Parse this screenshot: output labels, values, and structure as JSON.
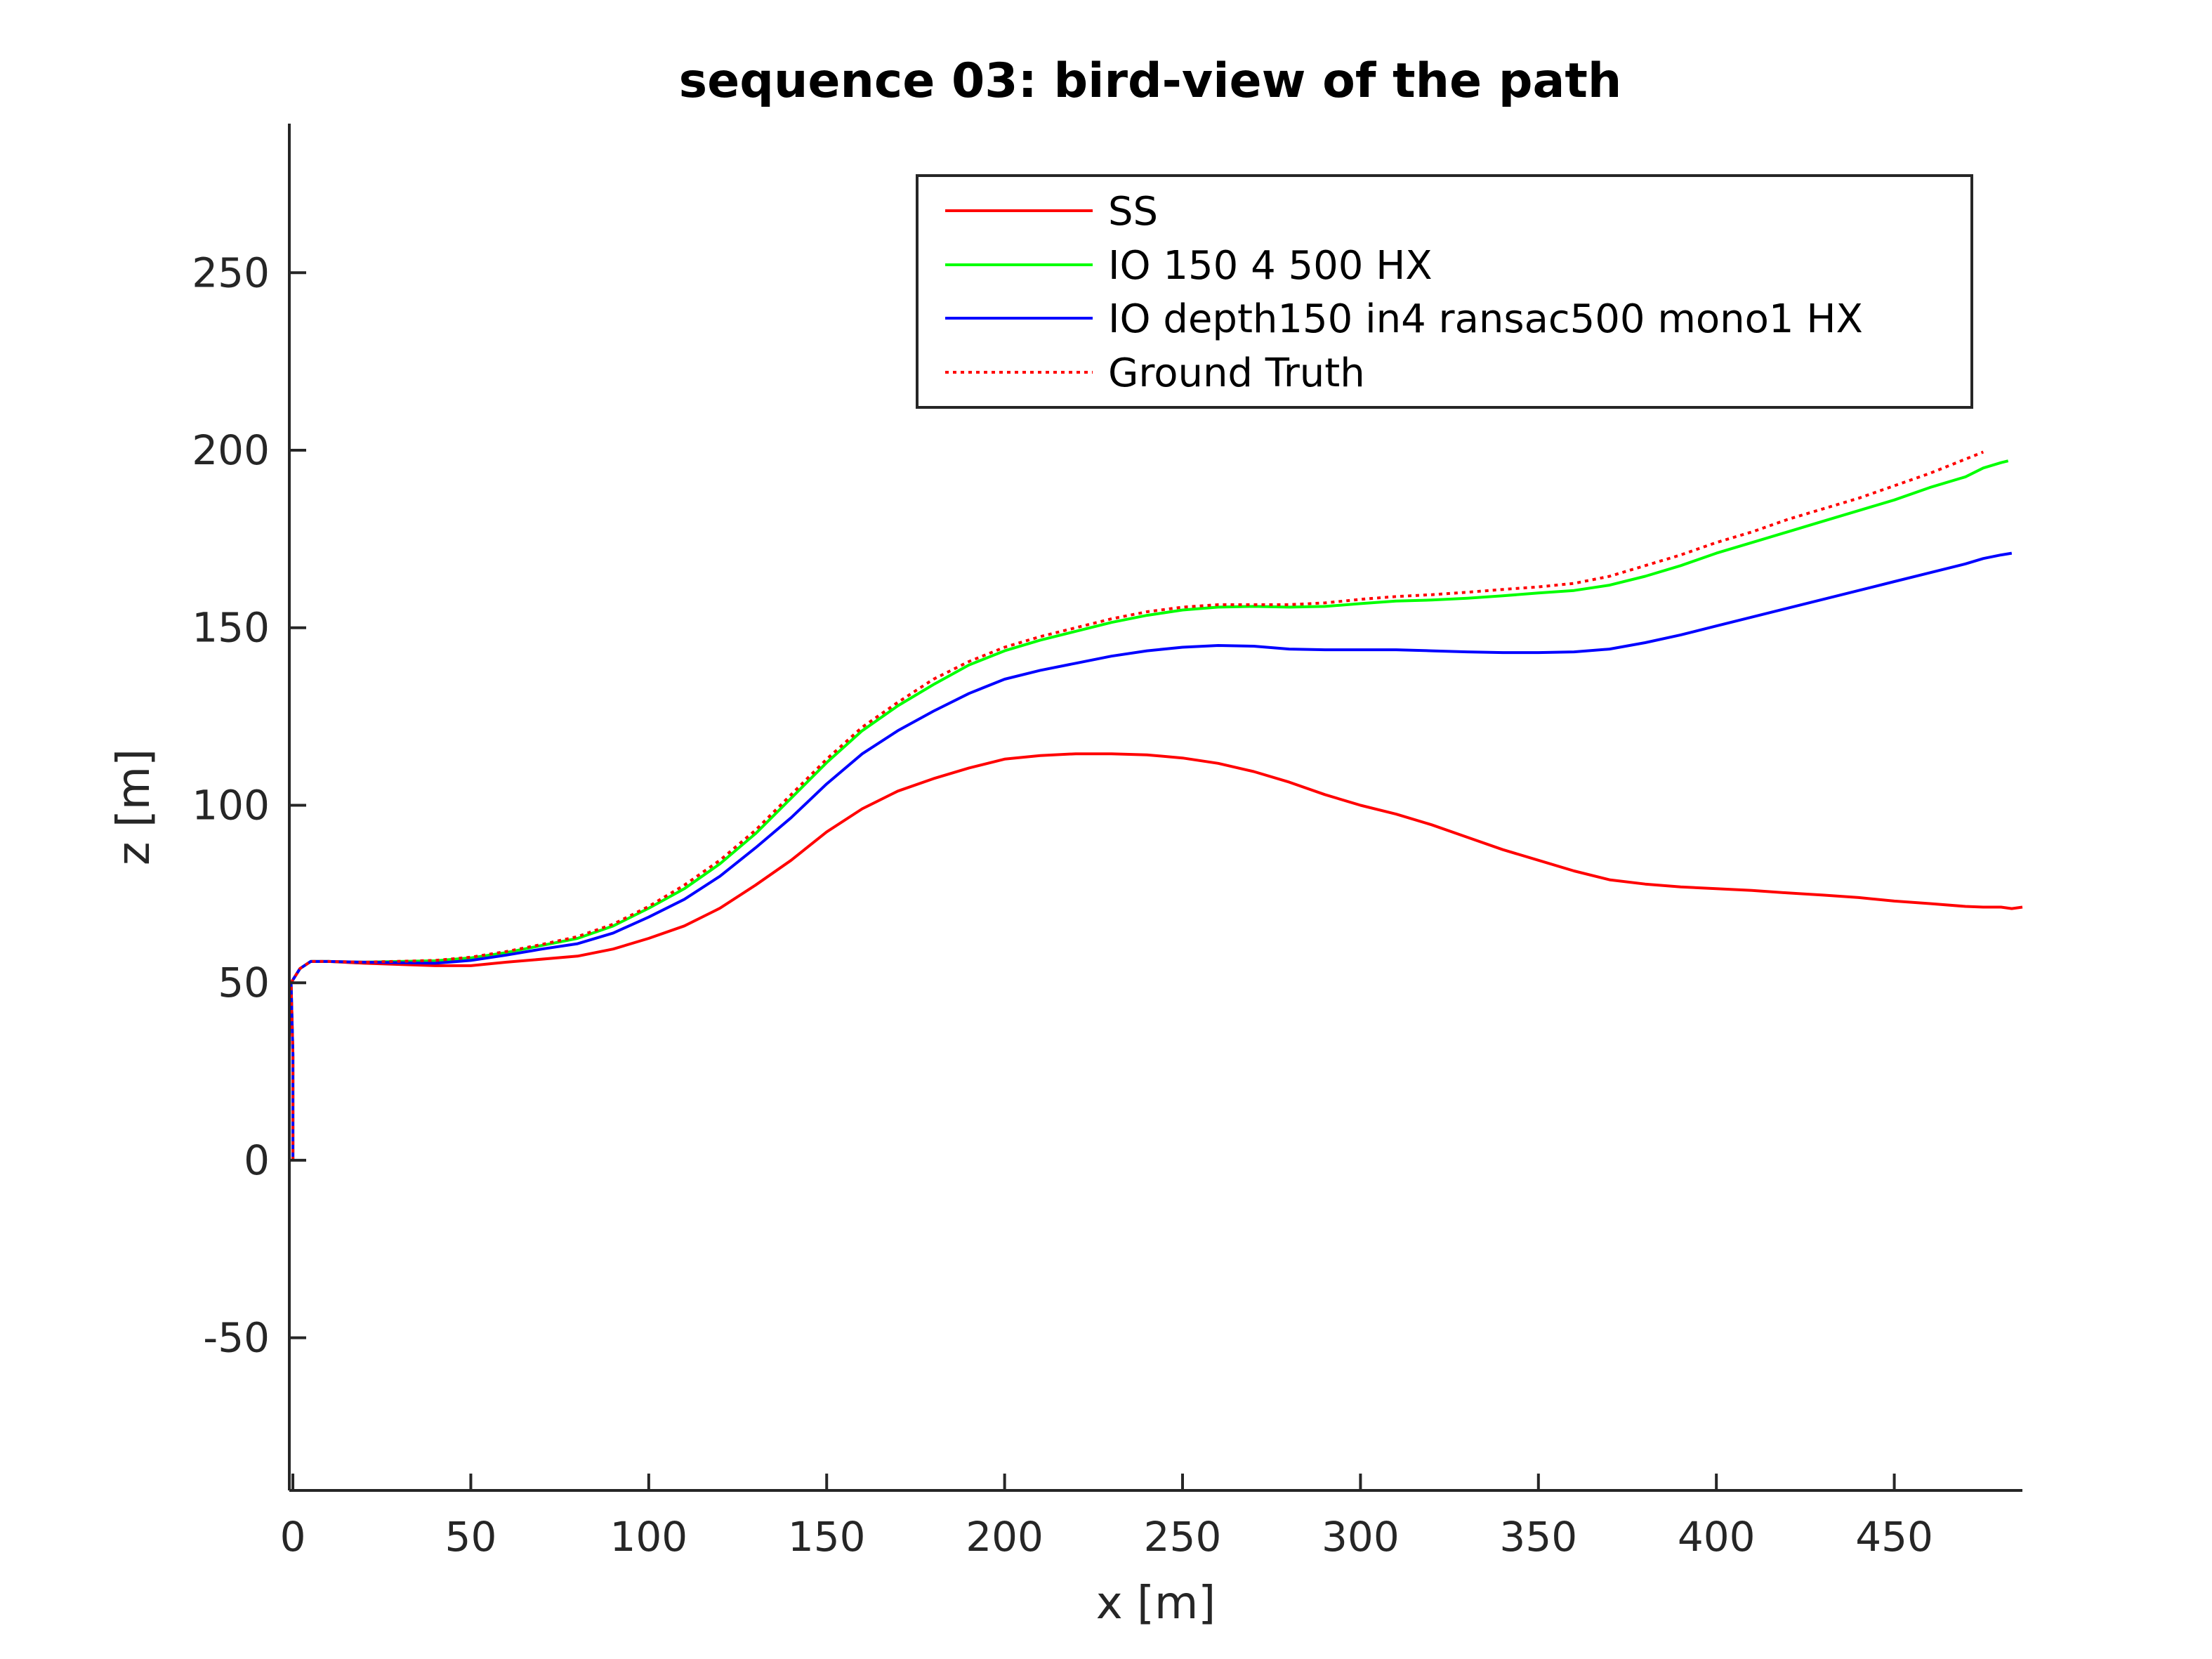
{
  "chart_data": {
    "type": "line",
    "title": "sequence 03: bird-view of the path",
    "xlabel": "x [m]",
    "ylabel": "z [m]",
    "xlim": [
      -1,
      486
    ],
    "ylim": [
      -93,
      292
    ],
    "xticks": [
      0,
      50,
      100,
      150,
      200,
      250,
      300,
      350,
      400,
      450
    ],
    "yticks": [
      -50,
      0,
      50,
      100,
      150,
      200,
      250
    ],
    "grid": false,
    "legend_position": "top-right",
    "series": [
      {
        "name": "SS",
        "color": "#ff0000",
        "dash": "solid",
        "points": [
          [
            0,
            0
          ],
          [
            0,
            30
          ],
          [
            -0.5,
            50
          ],
          [
            2,
            54
          ],
          [
            5,
            56
          ],
          [
            10,
            56
          ],
          [
            20,
            55.5
          ],
          [
            40,
            54.8
          ],
          [
            50,
            54.8
          ],
          [
            60,
            55.8
          ],
          [
            80,
            57.5
          ],
          [
            90,
            59.5
          ],
          [
            100,
            62.5
          ],
          [
            110,
            66
          ],
          [
            120,
            71
          ],
          [
            130,
            77.5
          ],
          [
            140,
            84.5
          ],
          [
            150,
            92.5
          ],
          [
            160,
            99
          ],
          [
            170,
            104
          ],
          [
            180,
            107.5
          ],
          [
            190,
            110.5
          ],
          [
            200,
            113
          ],
          [
            210,
            114
          ],
          [
            220,
            114.5
          ],
          [
            230,
            114.5
          ],
          [
            240,
            114.2
          ],
          [
            250,
            113.3
          ],
          [
            260,
            111.8
          ],
          [
            270,
            109.5
          ],
          [
            280,
            106.5
          ],
          [
            290,
            103
          ],
          [
            300,
            100
          ],
          [
            310,
            97.5
          ],
          [
            320,
            94.5
          ],
          [
            330,
            91
          ],
          [
            340,
            87.5
          ],
          [
            350,
            84.5
          ],
          [
            360,
            81.5
          ],
          [
            370,
            79
          ],
          [
            380,
            77.8
          ],
          [
            390,
            77
          ],
          [
            400,
            76.5
          ],
          [
            410,
            76
          ],
          [
            420,
            75.3
          ],
          [
            430,
            74.7
          ],
          [
            440,
            74
          ],
          [
            450,
            73
          ],
          [
            460,
            72.3
          ],
          [
            470,
            71.5
          ],
          [
            475,
            71.3
          ],
          [
            480,
            71.3
          ],
          [
            483,
            70.9
          ],
          [
            486,
            71.3
          ]
        ]
      },
      {
        "name": "IO 150 4 500 HX",
        "color": "#00ff00",
        "dash": "solid",
        "points": [
          [
            0,
            0
          ],
          [
            0,
            30
          ],
          [
            -0.5,
            50
          ],
          [
            2,
            54
          ],
          [
            5,
            56
          ],
          [
            10,
            56
          ],
          [
            20,
            55.8
          ],
          [
            40,
            56.2
          ],
          [
            50,
            57
          ],
          [
            60,
            58.5
          ],
          [
            70,
            60.5
          ],
          [
            80,
            62.5
          ],
          [
            90,
            66
          ],
          [
            100,
            71
          ],
          [
            110,
            76.5
          ],
          [
            120,
            83.5
          ],
          [
            130,
            92
          ],
          [
            140,
            102
          ],
          [
            150,
            112
          ],
          [
            160,
            121
          ],
          [
            170,
            128
          ],
          [
            180,
            134
          ],
          [
            190,
            139.5
          ],
          [
            200,
            143.5
          ],
          [
            210,
            146.5
          ],
          [
            220,
            149
          ],
          [
            230,
            151.5
          ],
          [
            240,
            153.5
          ],
          [
            250,
            155
          ],
          [
            260,
            155.8
          ],
          [
            270,
            156
          ],
          [
            280,
            155.8
          ],
          [
            290,
            156
          ],
          [
            300,
            156.8
          ],
          [
            310,
            157.5
          ],
          [
            320,
            157.8
          ],
          [
            330,
            158.3
          ],
          [
            340,
            159
          ],
          [
            350,
            159.8
          ],
          [
            360,
            160.5
          ],
          [
            370,
            162
          ],
          [
            380,
            164.5
          ],
          [
            390,
            167.5
          ],
          [
            400,
            171
          ],
          [
            410,
            174
          ],
          [
            420,
            177
          ],
          [
            430,
            180
          ],
          [
            440,
            183
          ],
          [
            450,
            186
          ],
          [
            460,
            189.5
          ],
          [
            470,
            192.5
          ],
          [
            475,
            195
          ],
          [
            480,
            196.5
          ],
          [
            482,
            197
          ]
        ]
      },
      {
        "name": "IO depth150 in4 ransac500 mono1 HX",
        "color": "#0000ff",
        "dash": "solid",
        "points": [
          [
            0,
            0
          ],
          [
            0,
            30
          ],
          [
            -0.5,
            50
          ],
          [
            2,
            54
          ],
          [
            5,
            56
          ],
          [
            10,
            56
          ],
          [
            20,
            55.8
          ],
          [
            40,
            55.5
          ],
          [
            50,
            56.3
          ],
          [
            60,
            57.8
          ],
          [
            70,
            59.5
          ],
          [
            80,
            61
          ],
          [
            90,
            64
          ],
          [
            100,
            68.5
          ],
          [
            110,
            73.5
          ],
          [
            120,
            80
          ],
          [
            130,
            88
          ],
          [
            140,
            96.5
          ],
          [
            150,
            106
          ],
          [
            160,
            114.5
          ],
          [
            170,
            121
          ],
          [
            180,
            126.5
          ],
          [
            190,
            131.5
          ],
          [
            200,
            135.5
          ],
          [
            210,
            138
          ],
          [
            220,
            140
          ],
          [
            230,
            142
          ],
          [
            240,
            143.5
          ],
          [
            250,
            144.5
          ],
          [
            260,
            145
          ],
          [
            270,
            144.8
          ],
          [
            280,
            144
          ],
          [
            290,
            143.8
          ],
          [
            300,
            143.8
          ],
          [
            310,
            143.8
          ],
          [
            320,
            143.5
          ],
          [
            330,
            143.2
          ],
          [
            340,
            143
          ],
          [
            350,
            143
          ],
          [
            360,
            143.2
          ],
          [
            370,
            144
          ],
          [
            380,
            145.8
          ],
          [
            390,
            148
          ],
          [
            400,
            150.5
          ],
          [
            410,
            153
          ],
          [
            420,
            155.5
          ],
          [
            430,
            158
          ],
          [
            440,
            160.5
          ],
          [
            450,
            163
          ],
          [
            460,
            165.5
          ],
          [
            470,
            168
          ],
          [
            475,
            169.5
          ],
          [
            480,
            170.5
          ],
          [
            483,
            171
          ]
        ]
      },
      {
        "name": "Ground Truth",
        "color": "#ff0000",
        "dash": "dotted",
        "points": [
          [
            0,
            0
          ],
          [
            0,
            30
          ],
          [
            -0.5,
            50
          ],
          [
            2,
            54
          ],
          [
            5,
            56
          ],
          [
            10,
            56
          ],
          [
            20,
            55.8
          ],
          [
            40,
            56.3
          ],
          [
            50,
            57.2
          ],
          [
            60,
            58.8
          ],
          [
            70,
            60.8
          ],
          [
            80,
            63
          ],
          [
            90,
            66.5
          ],
          [
            100,
            71.5
          ],
          [
            110,
            77.5
          ],
          [
            120,
            84.5
          ],
          [
            130,
            93
          ],
          [
            140,
            103
          ],
          [
            150,
            113
          ],
          [
            160,
            122
          ],
          [
            170,
            129
          ],
          [
            180,
            135.5
          ],
          [
            190,
            140.5
          ],
          [
            200,
            144.5
          ],
          [
            210,
            147.5
          ],
          [
            220,
            150
          ],
          [
            230,
            152.5
          ],
          [
            240,
            154.5
          ],
          [
            250,
            155.8
          ],
          [
            260,
            156.5
          ],
          [
            270,
            156.5
          ],
          [
            280,
            156.5
          ],
          [
            290,
            157
          ],
          [
            300,
            158
          ],
          [
            310,
            158.8
          ],
          [
            320,
            159.3
          ],
          [
            330,
            160
          ],
          [
            340,
            160.8
          ],
          [
            350,
            161.5
          ],
          [
            360,
            162.5
          ],
          [
            370,
            164.5
          ],
          [
            380,
            167.5
          ],
          [
            390,
            170.5
          ],
          [
            400,
            174
          ],
          [
            410,
            177
          ],
          [
            420,
            180.5
          ],
          [
            430,
            183.5
          ],
          [
            440,
            186.5
          ],
          [
            450,
            190
          ],
          [
            460,
            193.5
          ],
          [
            470,
            197.5
          ],
          [
            475,
            199.5
          ]
        ]
      }
    ]
  }
}
